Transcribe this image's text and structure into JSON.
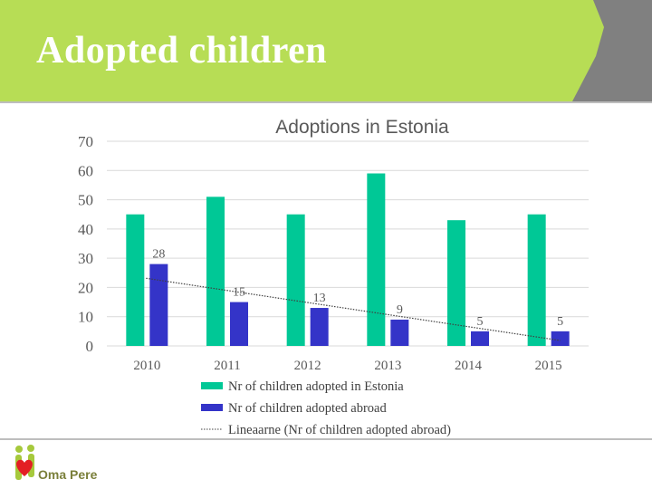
{
  "slide": {
    "title": "Adopted children",
    "header_color": "#b7dd55",
    "header_shadow_color": "#808080"
  },
  "logo": {
    "text": "Oma Pere",
    "heart_color": "#e31e24",
    "figure_color": "#a6c93c"
  },
  "chart_data": {
    "type": "bar",
    "title": "Adoptions in Estonia",
    "categories": [
      "2010",
      "2011",
      "2012",
      "2013",
      "2014",
      "2015"
    ],
    "series": [
      {
        "name": "Nr of children adopted in Estonia",
        "color": "#00c896",
        "values": [
          45,
          51,
          45,
          59,
          43,
          45
        ]
      },
      {
        "name": "Nr of children adopted abroad",
        "color": "#3434c8",
        "values": [
          28,
          15,
          13,
          9,
          5,
          5
        ],
        "data_labels": [
          "28",
          "15",
          "13",
          "9",
          "5",
          "5"
        ]
      }
    ],
    "trendline": {
      "name": "Lineaarne (Nr of children adopted abroad)",
      "type": "linear",
      "of_series": "Nr of children adopted abroad",
      "color": "#404040"
    },
    "y_ticks": [
      "0",
      "10",
      "20",
      "30",
      "40",
      "50",
      "60",
      "70"
    ],
    "ylim": [
      0,
      70
    ],
    "gridlines": true,
    "legend_position": "bottom-center",
    "xlabel": "",
    "ylabel": ""
  }
}
